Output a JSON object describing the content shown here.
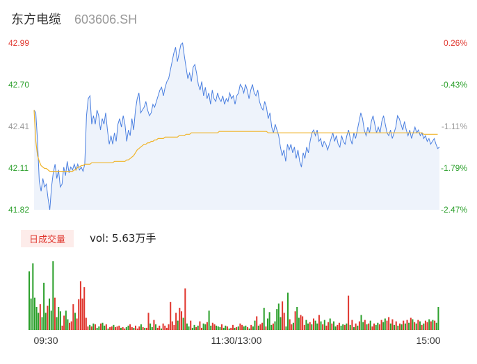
{
  "header": {
    "name": "东方电缆",
    "code": "603606.SH"
  },
  "volume_panel": {
    "label": "日成交量",
    "vol_text": "vol: 5.63万手"
  },
  "colors": {
    "price_line": "#4a7fe0",
    "avg_line": "#f0b429",
    "up": "#e0372f",
    "down": "#2ca02c",
    "price_fill": "#eef3fb"
  },
  "chart_data": [
    {
      "type": "line",
      "title": "",
      "y_tick_labels": [
        "42.99",
        "42.70",
        "42.41",
        "42.11",
        "41.82"
      ],
      "y_right_tick_labels": [
        "0.26%",
        "-0.43%",
        "-1.11%",
        "-1.79%",
        "-2.47%"
      ],
      "y_right_colors": [
        "up",
        "down",
        "neutral",
        "down",
        "down"
      ],
      "x_tick_labels": [
        "09:30",
        "11:30/13:00",
        "15:00"
      ],
      "ylim": [
        41.82,
        42.99
      ],
      "series": [
        {
          "name": "price",
          "values": [
            42.52,
            42.5,
            42.3,
            42.02,
            41.95,
            42.04,
            41.98,
            42.0,
            41.9,
            41.82,
            41.98,
            42.08,
            42.14,
            42.04,
            42.1,
            41.98,
            42.0,
            42.12,
            42.06,
            42.16,
            42.08,
            42.12,
            42.1,
            42.14,
            42.1,
            42.14,
            42.1,
            42.12,
            42.09,
            42.14,
            42.48,
            42.6,
            42.62,
            42.42,
            42.48,
            42.42,
            42.52,
            42.48,
            42.38,
            42.46,
            42.42,
            42.5,
            42.38,
            42.28,
            42.34,
            42.28,
            42.36,
            42.3,
            42.42,
            42.46,
            42.4,
            42.48,
            42.42,
            42.3,
            42.38,
            42.34,
            42.46,
            42.38,
            42.52,
            42.6,
            42.64,
            42.5,
            42.52,
            42.54,
            42.58,
            42.52,
            42.48,
            42.5,
            42.56,
            42.54,
            42.58,
            42.62,
            42.66,
            42.68,
            42.62,
            42.68,
            42.72,
            42.74,
            42.8,
            42.86,
            42.92,
            42.96,
            42.86,
            42.92,
            42.98,
            42.99,
            42.9,
            42.82,
            42.74,
            42.78,
            42.72,
            42.82,
            42.84,
            42.78,
            42.7,
            42.66,
            42.72,
            42.62,
            42.68,
            42.6,
            42.64,
            42.56,
            42.66,
            42.6,
            42.58,
            42.64,
            42.6,
            42.58,
            42.62,
            42.56,
            42.6,
            42.58,
            42.64,
            42.6,
            42.62,
            42.56,
            42.62,
            42.64,
            42.7,
            42.68,
            42.64,
            42.7,
            42.66,
            42.6,
            42.66,
            42.7,
            42.64,
            42.62,
            42.66,
            42.58,
            42.54,
            42.52,
            42.58,
            42.54,
            42.46,
            42.5,
            42.4,
            42.36,
            42.42,
            42.38,
            42.34,
            42.26,
            42.2,
            42.24,
            42.16,
            42.28,
            42.24,
            42.28,
            42.22,
            42.26,
            42.18,
            42.24,
            42.16,
            42.12,
            42.22,
            42.18,
            42.26,
            42.22,
            42.3,
            42.36,
            42.38,
            42.34,
            42.38,
            42.3,
            42.32,
            42.26,
            42.3,
            42.28,
            42.24,
            42.28,
            42.32,
            42.36,
            42.3,
            42.34,
            42.28,
            42.26,
            42.34,
            42.3,
            42.28,
            42.34,
            42.38,
            42.32,
            42.28,
            42.36,
            42.32,
            42.38,
            42.44,
            42.5,
            42.46,
            42.38,
            42.34,
            42.4,
            42.36,
            42.44,
            42.48,
            42.42,
            42.36,
            42.4,
            42.36,
            42.44,
            42.48,
            42.42,
            42.36,
            42.34,
            42.38,
            42.32,
            42.36,
            42.4,
            42.48,
            42.46,
            42.42,
            42.38,
            42.44,
            42.38,
            42.34,
            42.38,
            42.32,
            42.36,
            42.4,
            42.36,
            42.38,
            42.34,
            42.36,
            42.32,
            42.34,
            42.3,
            42.32,
            42.28,
            42.3,
            42.32,
            42.28,
            42.25,
            42.26
          ]
        },
        {
          "name": "avg",
          "values": [
            42.52,
            42.3,
            42.2,
            42.16,
            42.13,
            42.12,
            42.11,
            42.11,
            42.1,
            42.09,
            42.09,
            42.09,
            42.09,
            42.09,
            42.09,
            42.09,
            42.09,
            42.09,
            42.09,
            42.09,
            42.09,
            42.09,
            42.09,
            42.1,
            42.1,
            42.12,
            42.12,
            42.13,
            42.13,
            42.14,
            42.14,
            42.14,
            42.14,
            42.15,
            42.15,
            42.15,
            42.15,
            42.15,
            42.15,
            42.15,
            42.15,
            42.15,
            42.15,
            42.15,
            42.15,
            42.15,
            42.16,
            42.16,
            42.16,
            42.16,
            42.16,
            42.16,
            42.16,
            42.17,
            42.17,
            42.18,
            42.19,
            42.2,
            42.22,
            42.24,
            42.25,
            42.26,
            42.27,
            42.28,
            42.28,
            42.29,
            42.29,
            42.3,
            42.3,
            42.31,
            42.31,
            42.32,
            42.32,
            42.32,
            42.32,
            42.33,
            42.33,
            42.33,
            42.33,
            42.33,
            42.33,
            42.33,
            42.33,
            42.34,
            42.34,
            42.34,
            42.34,
            42.35,
            42.35,
            42.35,
            42.36,
            42.36,
            42.36,
            42.36,
            42.36,
            42.36,
            42.36,
            42.36,
            42.36,
            42.36,
            42.36,
            42.36,
            42.36,
            42.36,
            42.36,
            42.36,
            42.37,
            42.37,
            42.37,
            42.37,
            42.37,
            42.37,
            42.37,
            42.37,
            42.37,
            42.37,
            42.37,
            42.37,
            42.37,
            42.37,
            42.37,
            42.37,
            42.37,
            42.37,
            42.37,
            42.37,
            42.37,
            42.37,
            42.37,
            42.37,
            42.37,
            42.37,
            42.37,
            42.37,
            42.36,
            42.36,
            42.36,
            42.36,
            42.36,
            42.36,
            42.36,
            42.36,
            42.36,
            42.36,
            42.36,
            42.36,
            42.36,
            42.36,
            42.36,
            42.36,
            42.36,
            42.36,
            42.36,
            42.36,
            42.36,
            42.36,
            42.36,
            42.36,
            42.36,
            42.36,
            42.36,
            42.36,
            42.36,
            42.36,
            42.36,
            42.36,
            42.36,
            42.36,
            42.36,
            42.36,
            42.36,
            42.36,
            42.36,
            42.36,
            42.36,
            42.36,
            42.36,
            42.36,
            42.36,
            42.36,
            42.36,
            42.36,
            42.36,
            42.36,
            42.36,
            42.36,
            42.36,
            42.36,
            42.36,
            42.36,
            42.36,
            42.36,
            42.36,
            42.36,
            42.36,
            42.36,
            42.36,
            42.36,
            42.36,
            42.36,
            42.36,
            42.36,
            42.36,
            42.36,
            42.36,
            42.36,
            42.36,
            42.36,
            42.36,
            42.36,
            42.36,
            42.36,
            42.36,
            42.36,
            42.36,
            42.36,
            42.36,
            42.36,
            42.36,
            42.36,
            42.36,
            42.36,
            42.36,
            42.35,
            42.35,
            42.35,
            42.35,
            42.35,
            42.35,
            42.35,
            42.35,
            42.35
          ]
        }
      ]
    },
    {
      "type": "bar",
      "title": "",
      "ylim": [
        0,
        100
      ],
      "x_tick_labels": [
        "09:30",
        "11:30/13:00",
        "15:00"
      ],
      "values": [
        82,
        44,
        93,
        45,
        32,
        24,
        36,
        18,
        66,
        24,
        34,
        44,
        27,
        96,
        45,
        18,
        32,
        26,
        6,
        20,
        27,
        15,
        10,
        12,
        36,
        24,
        16,
        43,
        68,
        44,
        60,
        17,
        5,
        7,
        5,
        9,
        8,
        3,
        5,
        9,
        10,
        6,
        8,
        2,
        4,
        5,
        7,
        4,
        5,
        6,
        3,
        4,
        2,
        4,
        6,
        8,
        4,
        3,
        6,
        2,
        5,
        8,
        4,
        3,
        3,
        24,
        9,
        4,
        14,
        8,
        3,
        6,
        2,
        9,
        6,
        3,
        8,
        39,
        12,
        7,
        24,
        13,
        31,
        26,
        17,
        58,
        9,
        5,
        13,
        3,
        7,
        4,
        6,
        12,
        3,
        9,
        8,
        11,
        27,
        6,
        10,
        8,
        6,
        5,
        4,
        8,
        3,
        6,
        5,
        2,
        3,
        7,
        3,
        4,
        5,
        9,
        7,
        5,
        6,
        4,
        2,
        7,
        5,
        13,
        19,
        6,
        8,
        10,
        31,
        5,
        16,
        25,
        7,
        9,
        12,
        29,
        37,
        18,
        40,
        24,
        5,
        52,
        15,
        8,
        10,
        26,
        32,
        17,
        21,
        19,
        7,
        14,
        9,
        11,
        8,
        16,
        13,
        9,
        21,
        12,
        8,
        14,
        6,
        11,
        16,
        9,
        12,
        5,
        7,
        10,
        6,
        8,
        7,
        9,
        48,
        7,
        14,
        4,
        9,
        6,
        12,
        21,
        11,
        14,
        8,
        9,
        13,
        5,
        9,
        7,
        10,
        8,
        14,
        11,
        16,
        13,
        18,
        9,
        15,
        7,
        12,
        6,
        9,
        8,
        13,
        9,
        14,
        10,
        17,
        15,
        11,
        9,
        14,
        12,
        7,
        9,
        13,
        11,
        15,
        12,
        14,
        13,
        10,
        32
      ],
      "colors": [
        "down",
        "down",
        "down",
        "down",
        "down",
        "down",
        "up",
        "down",
        "down",
        "down",
        "up",
        "down",
        "down",
        "down",
        "up",
        "down",
        "down",
        "down",
        "up",
        "up",
        "down",
        "down",
        "up",
        "up",
        "up",
        "down",
        "up",
        "up",
        "up",
        "up",
        "up",
        "up",
        "up",
        "down",
        "up",
        "down",
        "up",
        "down",
        "down",
        "up",
        "down",
        "down",
        "up",
        "down",
        "up",
        "up",
        "down",
        "up",
        "up",
        "up",
        "down",
        "up",
        "up",
        "down",
        "down",
        "up",
        "up",
        "down",
        "up",
        "up",
        "up",
        "down",
        "up",
        "down",
        "up",
        "up",
        "down",
        "down",
        "up",
        "down",
        "up",
        "up",
        "down",
        "up",
        "up",
        "up",
        "up",
        "up",
        "up",
        "up",
        "up",
        "down",
        "up",
        "up",
        "down",
        "up",
        "down",
        "down",
        "up",
        "down",
        "down",
        "up",
        "down",
        "up",
        "up",
        "down",
        "down",
        "up",
        "down",
        "down",
        "up",
        "up",
        "down",
        "down",
        "down",
        "up",
        "down",
        "down",
        "up",
        "down",
        "up",
        "up",
        "down",
        "up",
        "down",
        "up",
        "up",
        "down",
        "down",
        "up",
        "down",
        "up",
        "down",
        "down",
        "up",
        "down",
        "up",
        "up",
        "down",
        "up",
        "down",
        "down",
        "down",
        "up",
        "down",
        "down",
        "down",
        "down",
        "up",
        "up",
        "down",
        "down",
        "up",
        "up",
        "down",
        "up",
        "down",
        "down",
        "up",
        "up",
        "up",
        "down",
        "down",
        "up",
        "down",
        "up",
        "down",
        "down",
        "up",
        "down",
        "up",
        "down",
        "up",
        "up",
        "down",
        "up",
        "down",
        "down",
        "up",
        "up",
        "down",
        "down",
        "up",
        "down",
        "up",
        "down",
        "up",
        "down",
        "up",
        "down",
        "up",
        "down",
        "down",
        "up",
        "down",
        "up",
        "down",
        "up",
        "up",
        "down",
        "down",
        "up",
        "up",
        "down",
        "down",
        "up",
        "up",
        "down",
        "up",
        "down",
        "up",
        "down",
        "up",
        "down",
        "up",
        "down",
        "up",
        "down",
        "up",
        "down",
        "up",
        "down",
        "up",
        "down",
        "up",
        "down",
        "up",
        "up",
        "down",
        "up",
        "down",
        "up",
        "down",
        "down",
        "up",
        "down",
        "up",
        "down",
        "down",
        "up",
        "down",
        "down"
      ]
    }
  ]
}
